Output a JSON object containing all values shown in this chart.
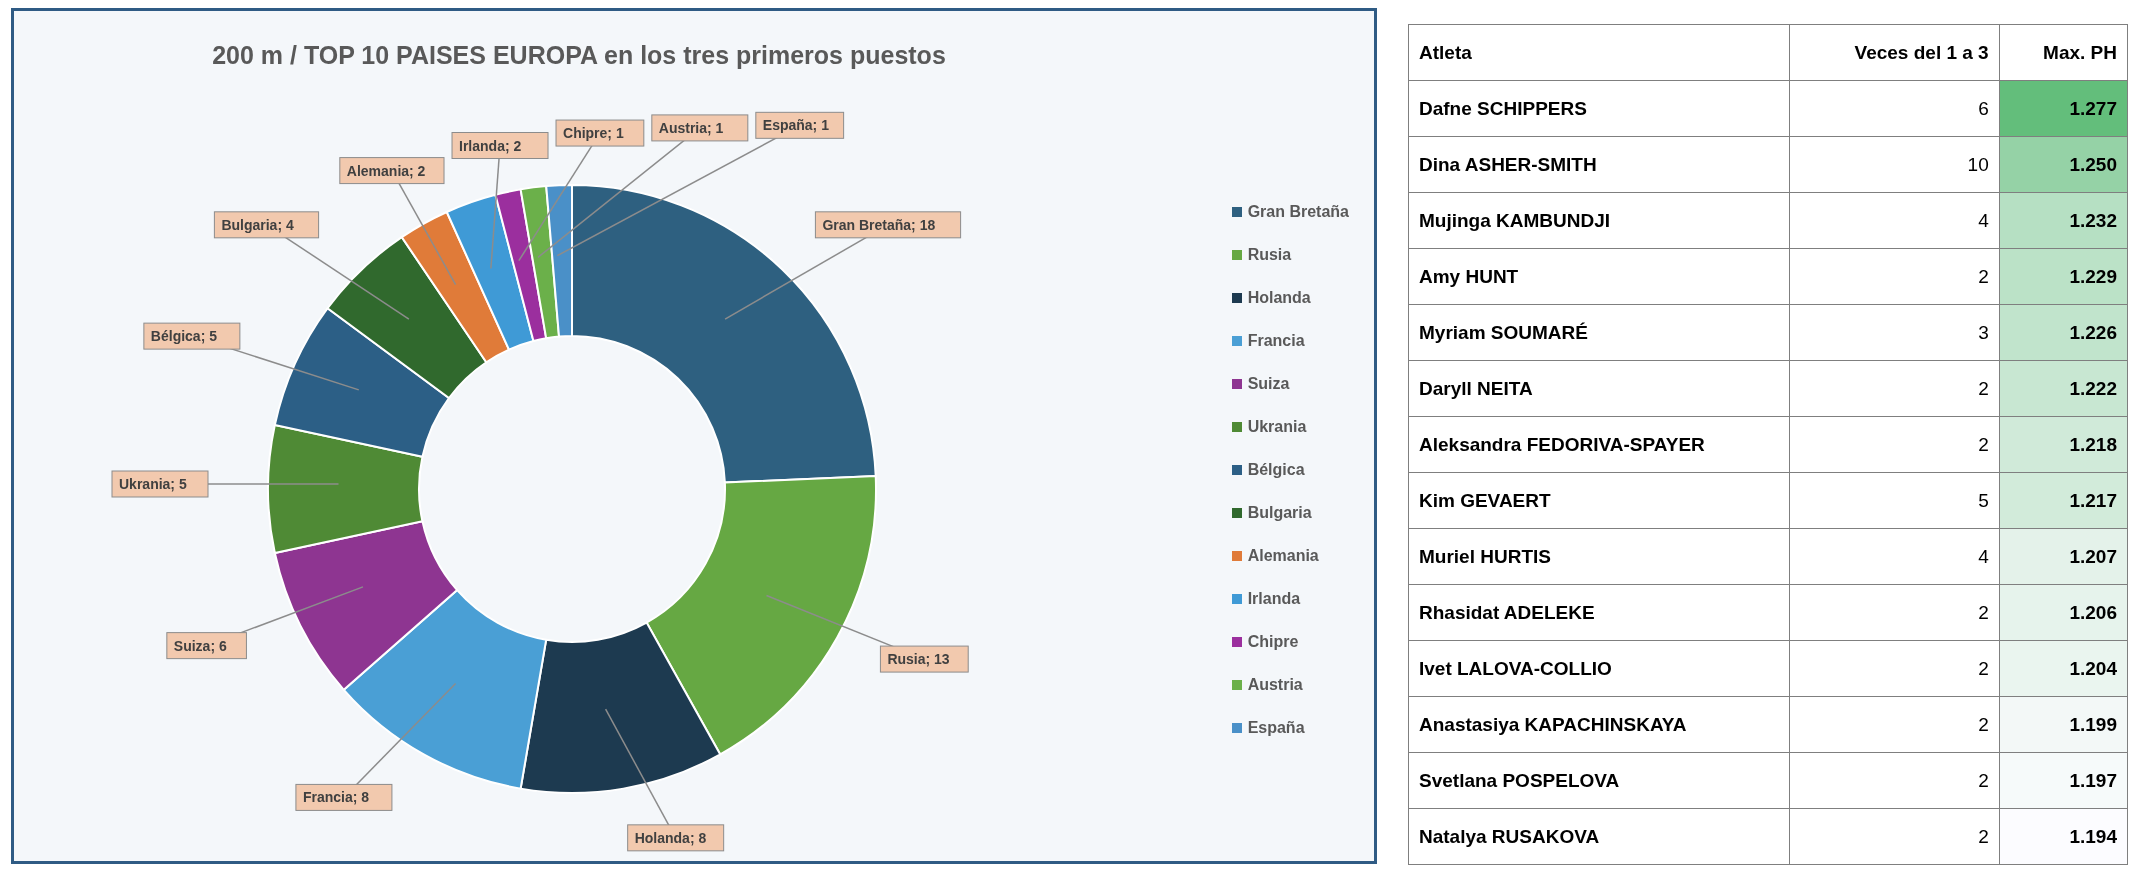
{
  "chart_data": [
    {
      "type": "donut",
      "title": "200 m / TOP 10 PAISES EUROPA en los tres primeros puestos",
      "categories": [
        "Gran Bretaña",
        "Rusia",
        "Holanda",
        "Francia",
        "Suiza",
        "Ukrania",
        "Bélgica",
        "Bulgaria",
        "Alemania",
        "Irlanda",
        "Chipre",
        "Austria",
        "España"
      ],
      "values": [
        18,
        13,
        8,
        8,
        6,
        5,
        5,
        4,
        2,
        2,
        1,
        1,
        1
      ],
      "value_labels": [
        "Gran Bretaña; 18",
        "Rusia; 13",
        "Holanda; 8",
        "Francia; 8",
        "Suiza; 6",
        "Ukrania; 5",
        "Bélgica; 5",
        "Bulgaria; 4",
        "Alemania; 2",
        "Irlanda; 2",
        "Chipre; 1",
        "Austria; 1",
        "España; 1"
      ],
      "colors": [
        "#2e6080",
        "#66a843",
        "#1d3a50",
        "#4a9fd5",
        "#8e3591",
        "#4f8a35",
        "#2c5f86",
        "#30692d",
        "#e07b39",
        "#3f9ad6",
        "#9b2f9e",
        "#6bb04a",
        "#4a90c8"
      ],
      "legend": "right"
    },
    {
      "type": "heatmap",
      "ylabel": "Atleta",
      "categories": [
        "Veces del 1 a 3",
        "Max. PH"
      ],
      "y_categories": [
        "Dafne SCHIPPERS",
        "Dina ASHER-SMITH",
        "Mujinga KAMBUNDJI",
        "Amy HUNT",
        "Myriam SOUMARÉ",
        "Daryll NEITA",
        "Aleksandra FEDORIVA-SPAYER",
        "Kim GEVAERT",
        "Muriel HURTIS",
        "Rhasidat ADELEKE",
        "Ivet LALOVA-COLLIO",
        "Anastasiya KAPACHINSKAYA",
        "Svetlana POSPELOVA",
        "Natalya RUSAKOVA"
      ],
      "cells": [
        [
          6,
          1.277
        ],
        [
          10,
          1.25
        ],
        [
          4,
          1.232
        ],
        [
          2,
          1.229
        ],
        [
          3,
          1.226
        ],
        [
          2,
          1.222
        ],
        [
          2,
          1.218
        ],
        [
          5,
          1.217
        ],
        [
          4,
          1.207
        ],
        [
          2,
          1.206
        ],
        [
          2,
          1.204
        ],
        [
          2,
          1.199
        ],
        [
          2,
          1.197
        ],
        [
          2,
          1.194
        ]
      ],
      "cell_labels": [
        [
          "6",
          "1.277"
        ],
        [
          "10",
          "1.250"
        ],
        [
          "4",
          "1.232"
        ],
        [
          "2",
          "1.229"
        ],
        [
          "3",
          "1.226"
        ],
        [
          "2",
          "1.222"
        ],
        [
          "2",
          "1.218"
        ],
        [
          "5",
          "1.217"
        ],
        [
          "4",
          "1.207"
        ],
        [
          "2",
          "1.206"
        ],
        [
          "2",
          "1.204"
        ],
        [
          "2",
          "1.199"
        ],
        [
          "2",
          "1.197"
        ],
        [
          "2",
          "1.194"
        ]
      ]
    }
  ]
}
